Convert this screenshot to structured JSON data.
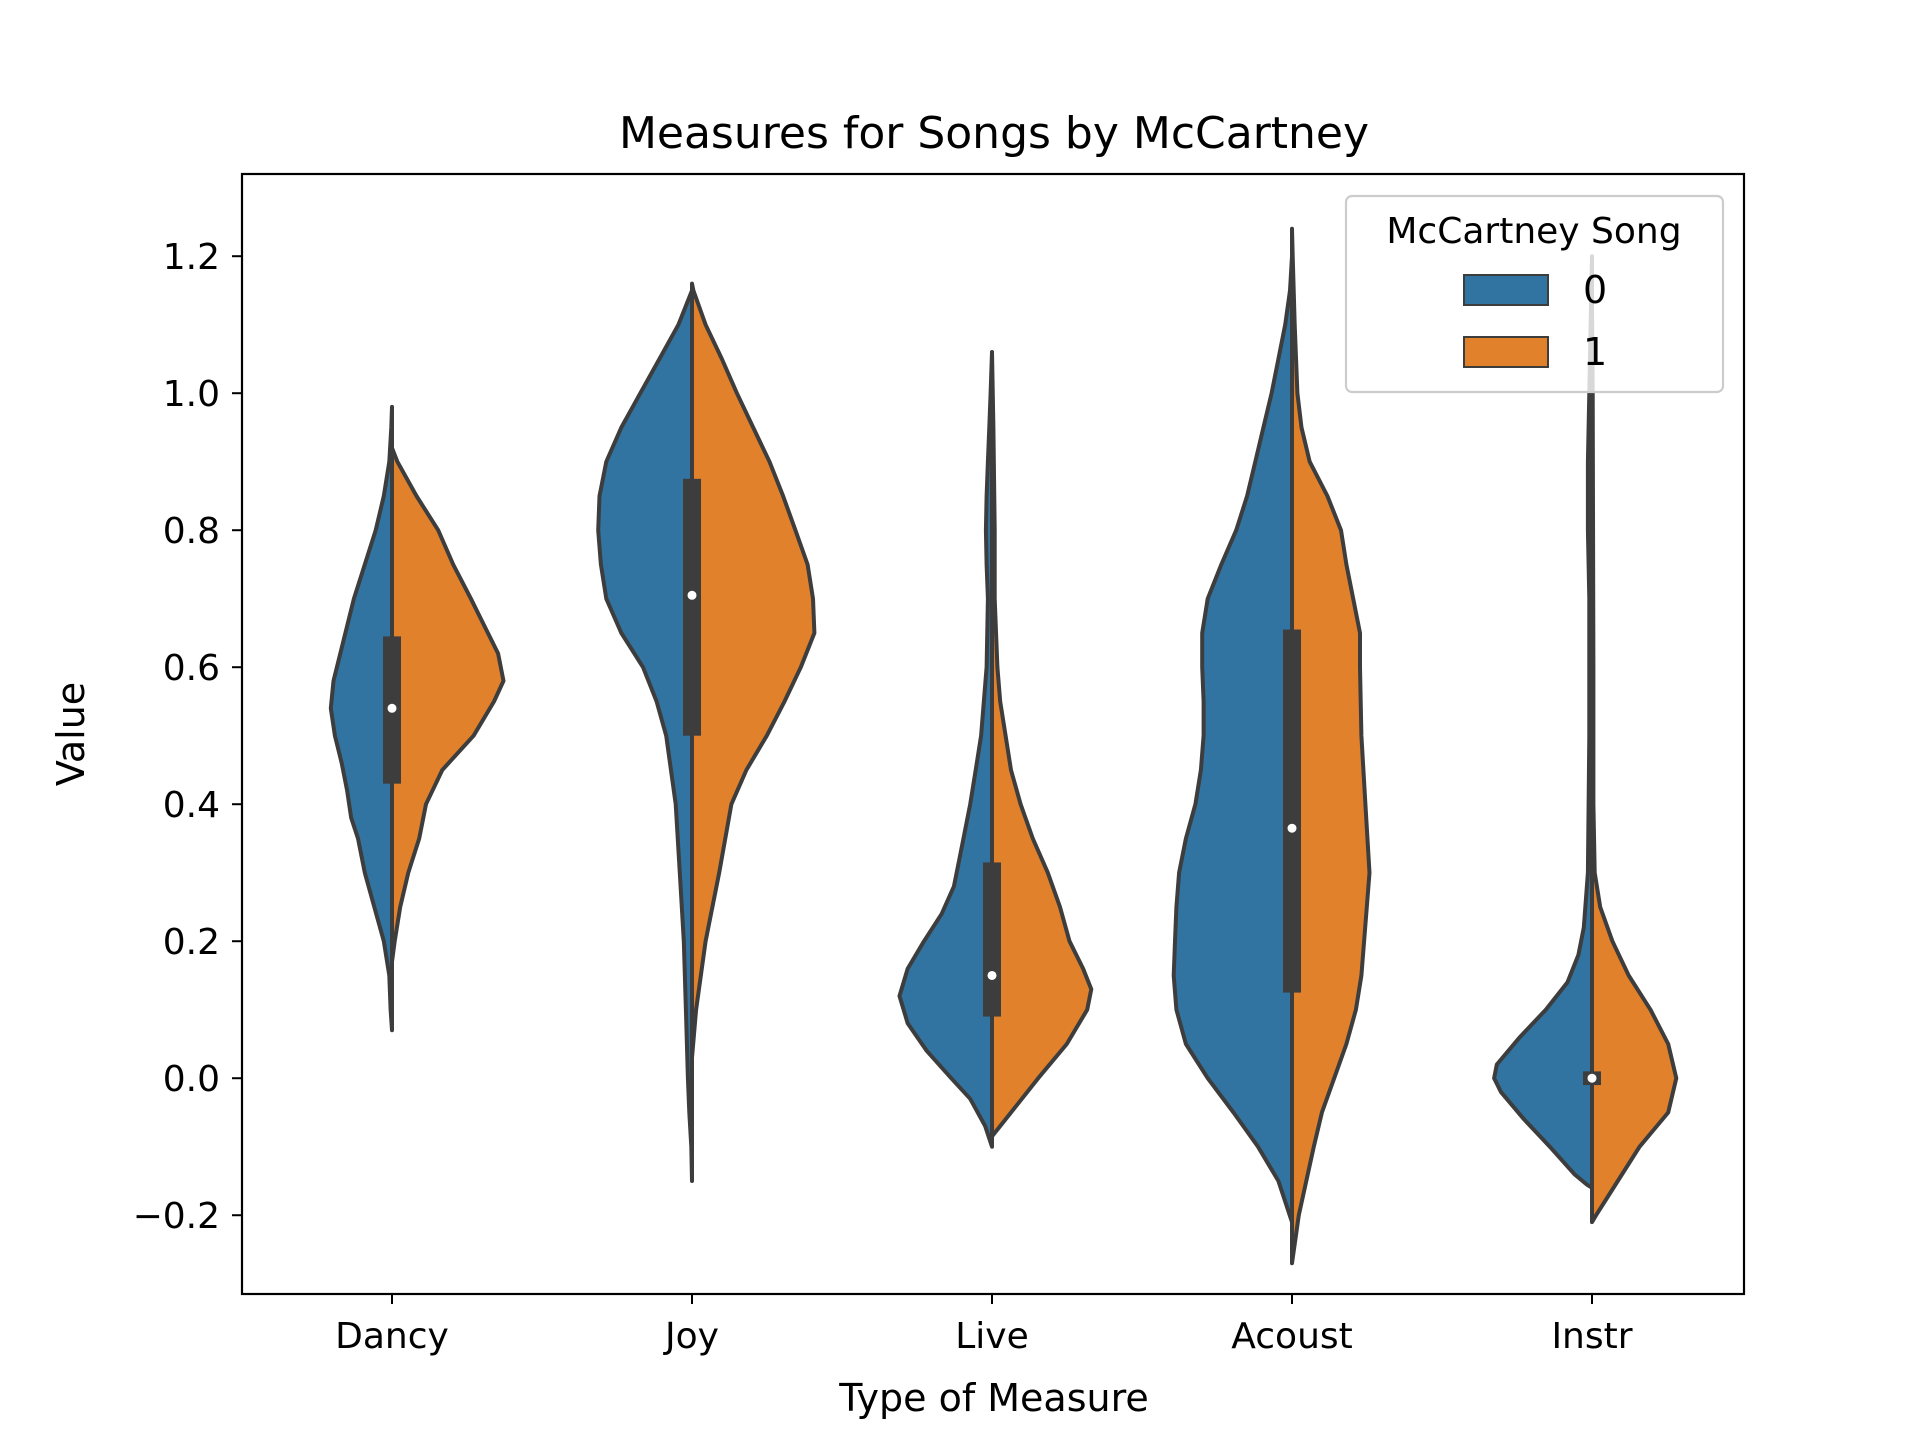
{
  "chart_data": {
    "type": "violin",
    "split": true,
    "title": "Measures for Songs by McCartney",
    "xlabel": "Type of Measure",
    "ylabel": "Value",
    "ylim": [
      -0.315,
      1.32
    ],
    "yticks": [
      -0.2,
      0.0,
      0.2,
      0.4,
      0.6,
      0.8,
      1.0,
      1.2
    ],
    "ytick_labels": [
      "−0.2",
      "0.0",
      "0.2",
      "0.4",
      "0.6",
      "0.8",
      "1.0",
      "1.2"
    ],
    "categories": [
      "Dancy",
      "Joy",
      "Live",
      "Acoust",
      "Instr"
    ],
    "legend": {
      "title": "McCartney Song",
      "placement": "top-right",
      "entries": [
        "0",
        "1"
      ]
    },
    "colors": {
      "0": "#3274a1",
      "1": "#e1812c",
      "outline": "#3d3d3d"
    },
    "series": [
      {
        "name": "0",
        "side": "left",
        "violins": [
          {
            "category": "Dancy",
            "profile": [
              [
                0.07,
                0.0
              ],
              [
                0.1,
                0.01
              ],
              [
                0.15,
                0.02
              ],
              [
                0.2,
                0.06
              ],
              [
                0.25,
                0.13
              ],
              [
                0.3,
                0.2
              ],
              [
                0.35,
                0.25
              ],
              [
                0.38,
                0.3
              ],
              [
                0.42,
                0.33
              ],
              [
                0.46,
                0.37
              ],
              [
                0.5,
                0.42
              ],
              [
                0.54,
                0.45
              ],
              [
                0.58,
                0.43
              ],
              [
                0.62,
                0.38
              ],
              [
                0.66,
                0.33
              ],
              [
                0.7,
                0.28
              ],
              [
                0.75,
                0.2
              ],
              [
                0.8,
                0.12
              ],
              [
                0.85,
                0.06
              ],
              [
                0.9,
                0.02
              ],
              [
                0.95,
                0.005
              ],
              [
                0.98,
                0.0
              ]
            ]
          },
          {
            "category": "Joy",
            "profile": [
              [
                -0.15,
                0.0
              ],
              [
                -0.1,
                0.005
              ],
              [
                -0.05,
                0.02
              ],
              [
                0.0,
                0.03
              ],
              [
                0.1,
                0.045
              ],
              [
                0.2,
                0.06
              ],
              [
                0.3,
                0.09
              ],
              [
                0.4,
                0.12
              ],
              [
                0.5,
                0.19
              ],
              [
                0.55,
                0.26
              ],
              [
                0.6,
                0.36
              ],
              [
                0.65,
                0.52
              ],
              [
                0.7,
                0.63
              ],
              [
                0.75,
                0.67
              ],
              [
                0.8,
                0.69
              ],
              [
                0.85,
                0.68
              ],
              [
                0.9,
                0.63
              ],
              [
                0.95,
                0.52
              ],
              [
                1.0,
                0.38
              ],
              [
                1.05,
                0.24
              ],
              [
                1.1,
                0.1
              ],
              [
                1.15,
                0.0
              ]
            ]
          },
          {
            "category": "Live",
            "profile": [
              [
                -0.1,
                0.0
              ],
              [
                -0.07,
                0.05
              ],
              [
                -0.03,
                0.16
              ],
              [
                0.0,
                0.3
              ],
              [
                0.04,
                0.48
              ],
              [
                0.08,
                0.62
              ],
              [
                0.12,
                0.68
              ],
              [
                0.16,
                0.62
              ],
              [
                0.2,
                0.5
              ],
              [
                0.24,
                0.37
              ],
              [
                0.28,
                0.28
              ],
              [
                0.32,
                0.24
              ],
              [
                0.36,
                0.2
              ],
              [
                0.4,
                0.16
              ],
              [
                0.45,
                0.12
              ],
              [
                0.5,
                0.08
              ],
              [
                0.6,
                0.04
              ],
              [
                0.7,
                0.03
              ],
              [
                0.75,
                0.04
              ],
              [
                0.8,
                0.045
              ],
              [
                0.85,
                0.04
              ],
              [
                0.9,
                0.03
              ],
              [
                0.95,
                0.02
              ],
              [
                1.0,
                0.01
              ],
              [
                1.06,
                0.0
              ]
            ]
          },
          {
            "category": "Acoust",
            "profile": [
              [
                -0.21,
                0.0
              ],
              [
                -0.15,
                0.1
              ],
              [
                -0.1,
                0.25
              ],
              [
                -0.05,
                0.43
              ],
              [
                0.0,
                0.62
              ],
              [
                0.05,
                0.78
              ],
              [
                0.1,
                0.85
              ],
              [
                0.15,
                0.87
              ],
              [
                0.2,
                0.86
              ],
              [
                0.25,
                0.85
              ],
              [
                0.3,
                0.83
              ],
              [
                0.35,
                0.78
              ],
              [
                0.4,
                0.71
              ],
              [
                0.45,
                0.67
              ],
              [
                0.5,
                0.65
              ],
              [
                0.55,
                0.65
              ],
              [
                0.6,
                0.66
              ],
              [
                0.65,
                0.66
              ],
              [
                0.7,
                0.62
              ],
              [
                0.75,
                0.52
              ],
              [
                0.8,
                0.41
              ],
              [
                0.85,
                0.33
              ],
              [
                0.9,
                0.27
              ],
              [
                0.95,
                0.21
              ],
              [
                1.0,
                0.15
              ],
              [
                1.05,
                0.1
              ],
              [
                1.1,
                0.05
              ],
              [
                1.15,
                0.015
              ],
              [
                1.2,
                0.0
              ]
            ]
          },
          {
            "category": "Instr",
            "profile": [
              [
                -0.16,
                0.0
              ],
              [
                -0.155,
                0.04
              ],
              [
                -0.14,
                0.13
              ],
              [
                -0.1,
                0.31
              ],
              [
                -0.06,
                0.5
              ],
              [
                -0.02,
                0.67
              ],
              [
                0.0,
                0.72
              ],
              [
                0.02,
                0.7
              ],
              [
                0.06,
                0.53
              ],
              [
                0.1,
                0.34
              ],
              [
                0.14,
                0.18
              ],
              [
                0.18,
                0.1
              ],
              [
                0.22,
                0.06
              ],
              [
                0.3,
                0.03
              ],
              [
                0.5,
                0.02
              ],
              [
                0.7,
                0.02
              ],
              [
                0.8,
                0.03
              ],
              [
                0.9,
                0.03
              ],
              [
                1.0,
                0.02
              ],
              [
                1.1,
                0.01
              ],
              [
                1.2,
                0.0
              ]
            ]
          }
        ]
      },
      {
        "name": "1",
        "side": "right",
        "violins": [
          {
            "category": "Dancy",
            "profile": [
              [
                0.17,
                0.0
              ],
              [
                0.2,
                0.02
              ],
              [
                0.25,
                0.06
              ],
              [
                0.3,
                0.12
              ],
              [
                0.35,
                0.2
              ],
              [
                0.4,
                0.25
              ],
              [
                0.45,
                0.37
              ],
              [
                0.5,
                0.6
              ],
              [
                0.55,
                0.75
              ],
              [
                0.58,
                0.82
              ],
              [
                0.62,
                0.78
              ],
              [
                0.66,
                0.68
              ],
              [
                0.7,
                0.58
              ],
              [
                0.75,
                0.45
              ],
              [
                0.8,
                0.34
              ],
              [
                0.85,
                0.18
              ],
              [
                0.9,
                0.04
              ],
              [
                0.92,
                0.0
              ]
            ]
          },
          {
            "category": "Joy",
            "profile": [
              [
                0.03,
                0.0
              ],
              [
                0.1,
                0.03
              ],
              [
                0.2,
                0.1
              ],
              [
                0.3,
                0.2
              ],
              [
                0.4,
                0.29
              ],
              [
                0.45,
                0.4
              ],
              [
                0.5,
                0.55
              ],
              [
                0.55,
                0.68
              ],
              [
                0.6,
                0.8
              ],
              [
                0.65,
                0.9
              ],
              [
                0.7,
                0.89
              ],
              [
                0.75,
                0.85
              ],
              [
                0.8,
                0.76
              ],
              [
                0.85,
                0.67
              ],
              [
                0.9,
                0.57
              ],
              [
                0.95,
                0.45
              ],
              [
                1.0,
                0.33
              ],
              [
                1.05,
                0.22
              ],
              [
                1.1,
                0.1
              ],
              [
                1.15,
                0.01
              ],
              [
                1.16,
                0.0
              ]
            ]
          },
          {
            "category": "Live",
            "profile": [
              [
                -0.085,
                0.0
              ],
              [
                -0.05,
                0.14
              ],
              [
                0.0,
                0.34
              ],
              [
                0.05,
                0.55
              ],
              [
                0.1,
                0.7
              ],
              [
                0.13,
                0.73
              ],
              [
                0.16,
                0.67
              ],
              [
                0.2,
                0.57
              ],
              [
                0.25,
                0.5
              ],
              [
                0.3,
                0.41
              ],
              [
                0.35,
                0.3
              ],
              [
                0.4,
                0.21
              ],
              [
                0.45,
                0.14
              ],
              [
                0.5,
                0.1
              ],
              [
                0.55,
                0.06
              ],
              [
                0.6,
                0.04
              ],
              [
                0.7,
                0.02
              ],
              [
                0.8,
                0.02
              ],
              [
                0.95,
                0.01
              ],
              [
                1.06,
                0.0
              ]
            ]
          },
          {
            "category": "Acoust",
            "profile": [
              [
                -0.27,
                0.0
              ],
              [
                -0.2,
                0.05
              ],
              [
                -0.1,
                0.16
              ],
              [
                -0.05,
                0.22
              ],
              [
                0.0,
                0.31
              ],
              [
                0.05,
                0.4
              ],
              [
                0.1,
                0.47
              ],
              [
                0.15,
                0.51
              ],
              [
                0.2,
                0.53
              ],
              [
                0.3,
                0.57
              ],
              [
                0.4,
                0.54
              ],
              [
                0.5,
                0.51
              ],
              [
                0.6,
                0.5
              ],
              [
                0.65,
                0.5
              ],
              [
                0.7,
                0.45
              ],
              [
                0.75,
                0.4
              ],
              [
                0.8,
                0.36
              ],
              [
                0.85,
                0.26
              ],
              [
                0.9,
                0.13
              ],
              [
                0.95,
                0.07
              ],
              [
                1.0,
                0.04
              ],
              [
                1.1,
                0.02
              ],
              [
                1.2,
                0.005
              ],
              [
                1.24,
                0.0
              ]
            ]
          },
          {
            "category": "Instr",
            "profile": [
              [
                -0.21,
                0.0
              ],
              [
                -0.2,
                0.03
              ],
              [
                -0.15,
                0.19
              ],
              [
                -0.1,
                0.35
              ],
              [
                -0.05,
                0.56
              ],
              [
                0.0,
                0.62
              ],
              [
                0.05,
                0.56
              ],
              [
                0.1,
                0.43
              ],
              [
                0.15,
                0.27
              ],
              [
                0.2,
                0.15
              ],
              [
                0.25,
                0.06
              ],
              [
                0.3,
                0.02
              ],
              [
                0.4,
                0.01
              ],
              [
                0.6,
                0.01
              ],
              [
                1.0,
                0.005
              ],
              [
                1.13,
                0.0
              ]
            ]
          }
        ]
      }
    ],
    "quartile_boxes": [
      {
        "category": "Dancy",
        "q1": 0.43,
        "median": 0.54,
        "q3": 0.645
      },
      {
        "category": "Joy",
        "q1": 0.5,
        "median": 0.705,
        "q3": 0.875
      },
      {
        "category": "Live",
        "q1": 0.09,
        "median": 0.15,
        "q3": 0.315
      },
      {
        "category": "Acoust",
        "q1": 0.125,
        "median": 0.365,
        "q3": 0.655
      },
      {
        "category": "Instr",
        "q1": -0.01,
        "median": 0.0,
        "q3": 0.01
      }
    ]
  }
}
